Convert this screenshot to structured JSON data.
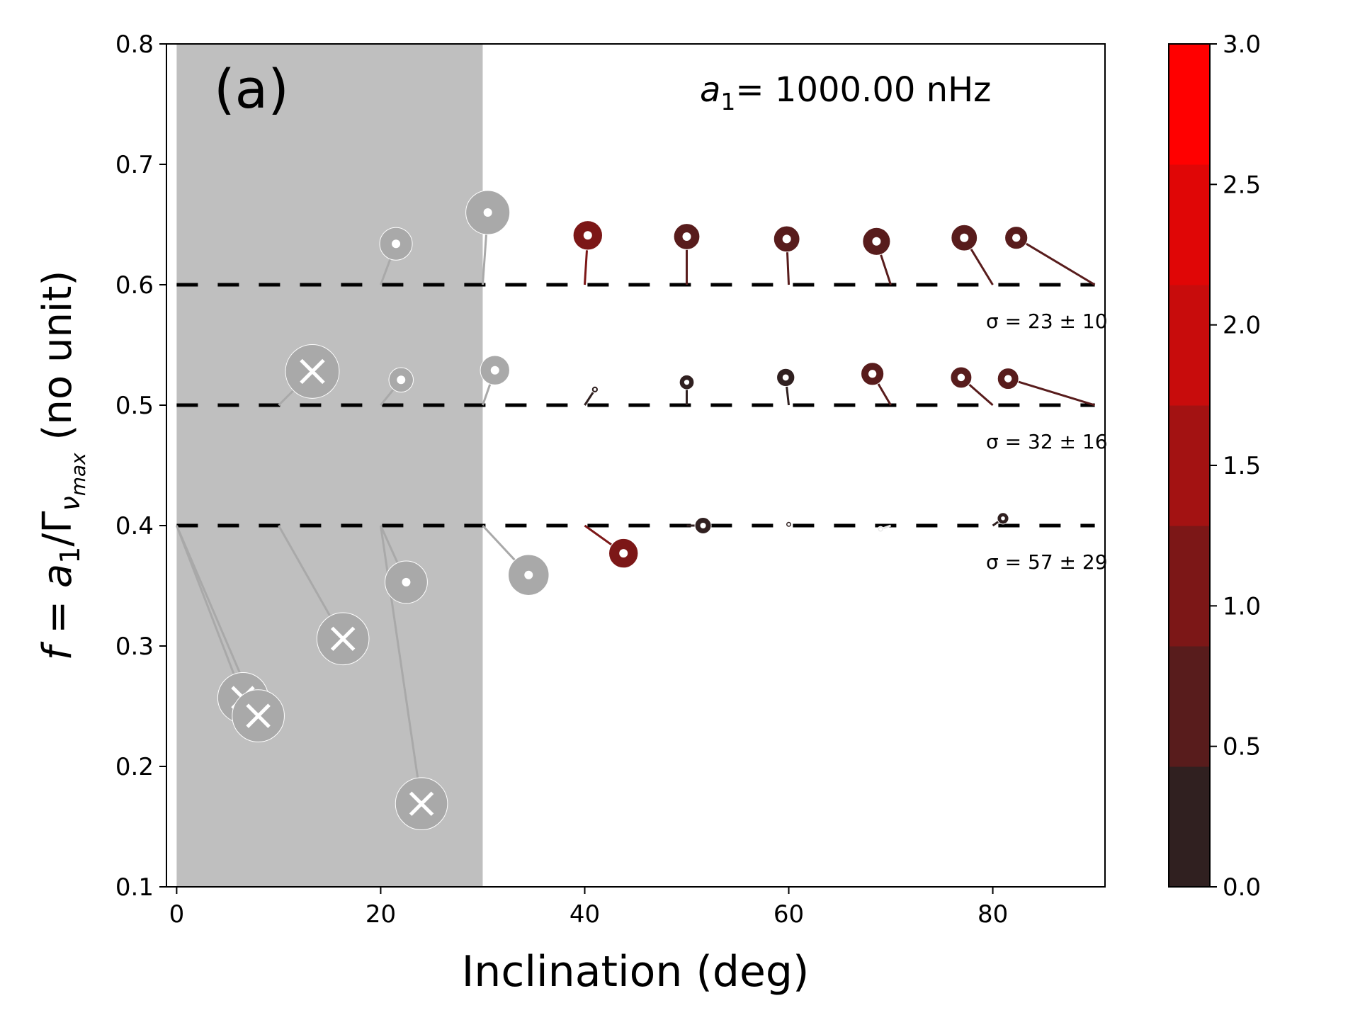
{
  "chart_data": {
    "type": "scatter",
    "panel_label": "(a)",
    "annotation": {
      "symbol": "a",
      "subscript": "1",
      "text": "= 1000.00 nHz"
    },
    "xlabel": "Inclination (deg)",
    "ylabel": {
      "prefix": "f",
      "eq": " = a",
      "sub1": "1",
      "mid": "/Γ",
      "nu": "ν",
      "sub2": "max",
      "suffix": "  (no unit)"
    },
    "xlim": [
      -1,
      91
    ],
    "ylim": [
      0.1,
      0.8
    ],
    "xticks": [
      0,
      20,
      40,
      60,
      80
    ],
    "yticks": [
      0.1,
      0.2,
      0.3,
      0.4,
      0.5,
      0.6,
      0.7,
      0.8
    ],
    "shaded_region": {
      "x": [
        0,
        30
      ],
      "color": "#bfbfbf"
    },
    "reference_lines": [
      0.6,
      0.5,
      0.4
    ],
    "sigma_labels": [
      {
        "y": 0.57,
        "text": "σ = 23 ± 10"
      },
      {
        "y": 0.47,
        "text": "σ = 32 ± 16"
      },
      {
        "y": 0.37,
        "text": "σ = 57 ± 29"
      }
    ],
    "colorbar": {
      "range": [
        0,
        3
      ],
      "ticks": [
        "0.0",
        "0.5",
        "1.0",
        "1.5",
        "2.0",
        "2.5",
        "3.0"
      ],
      "colors": [
        "#302020",
        "#581c1c",
        "#7c1717",
        "#a31212",
        "#c80c0c",
        "#e00606",
        "#ff0000"
      ]
    },
    "series": [
      {
        "target_f": 0.6,
        "points": [
          {
            "x_true": 20,
            "x": 21.5,
            "y": 0.634,
            "rel_size": 0.2,
            "color": "#a9a9a9",
            "rejected": false
          },
          {
            "x_true": 30,
            "x": 30.5,
            "y": 0.66,
            "rel_size": 0.27,
            "color": "#a9a9a9",
            "rejected": false
          },
          {
            "x_true": 40,
            "x": 40.3,
            "y": 0.641,
            "rel_size": 0.18,
            "color": "#7c1717",
            "rejected": false
          },
          {
            "x_true": 50,
            "x": 50.0,
            "y": 0.64,
            "rel_size": 0.16,
            "color": "#581c1c",
            "rejected": false
          },
          {
            "x_true": 60,
            "x": 59.8,
            "y": 0.638,
            "rel_size": 0.16,
            "color": "#581c1c",
            "rejected": false
          },
          {
            "x_true": 70,
            "x": 68.6,
            "y": 0.636,
            "rel_size": 0.17,
            "color": "#581c1c",
            "rejected": false
          },
          {
            "x_true": 80,
            "x": 77.2,
            "y": 0.639,
            "rel_size": 0.16,
            "color": "#581c1c",
            "rejected": false
          },
          {
            "x_true": 90,
            "x": 82.3,
            "y": 0.639,
            "rel_size": 0.14,
            "color": "#581c1c",
            "rejected": false
          }
        ]
      },
      {
        "target_f": 0.5,
        "points": [
          {
            "x_true": 10,
            "x": 13.3,
            "y": 0.528,
            "rel_size": 0.33,
            "color": "#a9a9a9",
            "rejected": true
          },
          {
            "x_true": 20,
            "x": 22.0,
            "y": 0.521,
            "rel_size": 0.15,
            "color": "#a9a9a9",
            "rejected": false
          },
          {
            "x_true": 30,
            "x": 31.2,
            "y": 0.529,
            "rel_size": 0.18,
            "color": "#a9a9a9",
            "rejected": false
          },
          {
            "x_true": 40,
            "x": 41.0,
            "y": 0.513,
            "rel_size": 0.04,
            "color": "#302020",
            "rejected": false
          },
          {
            "x_true": 50,
            "x": 50.0,
            "y": 0.519,
            "rel_size": 0.09,
            "color": "#302020",
            "rejected": false
          },
          {
            "x_true": 60,
            "x": 59.7,
            "y": 0.523,
            "rel_size": 0.11,
            "color": "#302020",
            "rejected": false
          },
          {
            "x_true": 70,
            "x": 68.2,
            "y": 0.526,
            "rel_size": 0.14,
            "color": "#581c1c",
            "rejected": false
          },
          {
            "x_true": 80,
            "x": 76.9,
            "y": 0.523,
            "rel_size": 0.13,
            "color": "#581c1c",
            "rejected": false
          },
          {
            "x_true": 90,
            "x": 81.5,
            "y": 0.522,
            "rel_size": 0.13,
            "color": "#581c1c",
            "rejected": false
          }
        ]
      },
      {
        "target_f": 0.4,
        "points": [
          {
            "x_true": 0,
            "x": 6.5,
            "y": 0.257,
            "rel_size": 0.31,
            "color": "#a9a9a9",
            "rejected": true
          },
          {
            "x_true": 0,
            "x": 8.0,
            "y": 0.242,
            "rel_size": 0.32,
            "color": "#a9a9a9",
            "rejected": true
          },
          {
            "x_true": 10,
            "x": 16.3,
            "y": 0.306,
            "rel_size": 0.32,
            "color": "#a9a9a9",
            "rejected": true
          },
          {
            "x_true": 20,
            "x": 22.5,
            "y": 0.353,
            "rel_size": 0.26,
            "color": "#a9a9a9",
            "rejected": false
          },
          {
            "x_true": 20,
            "x": 24.0,
            "y": 0.169,
            "rel_size": 0.32,
            "color": "#a9a9a9",
            "rejected": true
          },
          {
            "x_true": 30,
            "x": 34.5,
            "y": 0.359,
            "rel_size": 0.25,
            "color": "#a9a9a9",
            "rejected": false
          },
          {
            "x_true": 40,
            "x": 43.8,
            "y": 0.377,
            "rel_size": 0.18,
            "color": "#7c1717",
            "rejected": false
          },
          {
            "x_true": 50,
            "x": 51.6,
            "y": 0.4,
            "rel_size": 0.1,
            "color": "#302020",
            "rejected": false
          },
          {
            "x_true": 60,
            "x": 60.0,
            "y": 0.401,
            "rel_size": 0.02,
            "color": "#302020",
            "rejected": false
          },
          {
            "x_true": 70,
            "x": 69.0,
            "y": 0.397,
            "rel_size": 0.03,
            "color": "#e8e8e8",
            "rejected": false
          },
          {
            "x_true": 80,
            "x": 81.0,
            "y": 0.406,
            "rel_size": 0.07,
            "color": "#302020",
            "rejected": false
          }
        ]
      }
    ]
  }
}
